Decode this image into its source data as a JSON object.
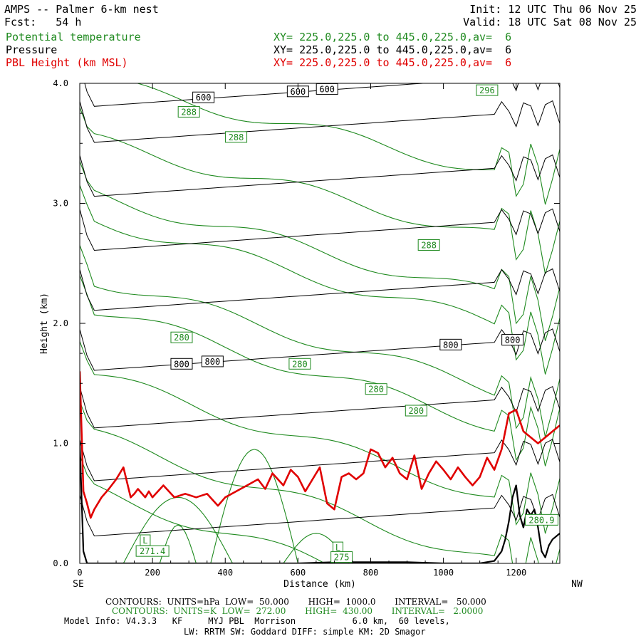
{
  "header": {
    "title": "AMPS -- Palmer 6-km nest",
    "fcst_label": "Fcst:",
    "fcst_value": "54 h",
    "init": "Init: 12 UTC Thu 06 Nov 25",
    "valid": "Valid: 18 UTC Sat 08 Nov 25",
    "fields": [
      {
        "name": "Potential temperature",
        "xy": "XY= 225.0,225.0 to 445.0,225.0,av=  6",
        "color": "#1f8a1f"
      },
      {
        "name": "Pressure",
        "xy": "XY= 225.0,225.0 to 445.0,225.0,av=  6",
        "color": "#000000"
      },
      {
        "name": "PBL Height (km MSL)",
        "xy": "XY= 225.0,225.0 to 445.0,225.0,av=  6",
        "color": "#e00000"
      }
    ]
  },
  "colors": {
    "theta": "#1f8a1f",
    "pressure": "#000000",
    "pbl": "#e00000",
    "terrain": "#000000"
  },
  "chart_data": {
    "type": "line",
    "xlabel": "Distance (km)",
    "ylabel": "Height (km)",
    "xlim": [
      0,
      1320
    ],
    "ylim": [
      0,
      4
    ],
    "xticks": [
      0,
      200,
      400,
      600,
      800,
      1000,
      1200
    ],
    "yticks": [
      0.0,
      1.0,
      2.0,
      3.0,
      4.0
    ],
    "x_end_labels": {
      "left": "SE",
      "right": "NW"
    },
    "pressure_contour_labels": [
      {
        "text": "600",
        "x": 340,
        "y": 3.88
      },
      {
        "text": "600",
        "x": 600,
        "y": 3.93
      },
      {
        "text": "600",
        "x": 680,
        "y": 3.95
      },
      {
        "text": "800",
        "x": 280,
        "y": 1.66
      },
      {
        "text": "800",
        "x": 365,
        "y": 1.68
      },
      {
        "text": "800",
        "x": 1020,
        "y": 1.82
      },
      {
        "text": "800",
        "x": 1190,
        "y": 1.86
      }
    ],
    "theta_contour_labels": [
      {
        "text": "288",
        "x": 300,
        "y": 3.76
      },
      {
        "text": "288",
        "x": 430,
        "y": 3.55
      },
      {
        "text": "288",
        "x": 960,
        "y": 2.65
      },
      {
        "text": "296",
        "x": 1120,
        "y": 3.94
      },
      {
        "text": "280",
        "x": 280,
        "y": 1.88
      },
      {
        "text": "280",
        "x": 605,
        "y": 1.66
      },
      {
        "text": "280",
        "x": 815,
        "y": 1.45
      },
      {
        "text": "280",
        "x": 925,
        "y": 1.27
      },
      {
        "text": "L",
        "x": 180,
        "y": 0.19
      },
      {
        "text": "271.4",
        "x": 200,
        "y": 0.1
      },
      {
        "text": "L",
        "x": 710,
        "y": 0.13
      },
      {
        "text": "275",
        "x": 720,
        "y": 0.05
      },
      {
        "text": "280.9",
        "x": 1270,
        "y": 0.36
      }
    ],
    "series": [
      {
        "name": "PBL Height (km MSL)",
        "x": [
          0,
          10,
          20,
          30,
          40,
          60,
          80,
          100,
          120,
          140,
          150,
          160,
          180,
          190,
          200,
          230,
          260,
          290,
          320,
          350,
          380,
          400,
          430,
          460,
          490,
          510,
          530,
          560,
          580,
          600,
          620,
          640,
          660,
          680,
          700,
          720,
          740,
          760,
          780,
          800,
          820,
          840,
          860,
          880,
          900,
          920,
          940,
          960,
          980,
          1000,
          1020,
          1040,
          1060,
          1080,
          1100,
          1120,
          1140,
          1160,
          1180,
          1200,
          1220,
          1240,
          1260,
          1280,
          1300,
          1320
        ],
        "y": [
          1.6,
          0.6,
          0.5,
          0.38,
          0.45,
          0.55,
          0.62,
          0.7,
          0.8,
          0.55,
          0.58,
          0.62,
          0.55,
          0.6,
          0.55,
          0.65,
          0.55,
          0.58,
          0.55,
          0.58,
          0.48,
          0.55,
          0.6,
          0.65,
          0.7,
          0.62,
          0.75,
          0.65,
          0.78,
          0.72,
          0.6,
          0.7,
          0.8,
          0.5,
          0.45,
          0.72,
          0.75,
          0.7,
          0.75,
          0.95,
          0.92,
          0.8,
          0.88,
          0.75,
          0.7,
          0.9,
          0.62,
          0.75,
          0.85,
          0.78,
          0.7,
          0.8,
          0.72,
          0.65,
          0.72,
          0.88,
          0.78,
          0.95,
          1.25,
          1.28,
          1.1,
          1.05,
          1.0,
          1.05,
          1.1,
          1.15
        ]
      },
      {
        "name": "Terrain",
        "x": [
          0,
          10,
          20,
          30,
          100,
          200,
          300,
          400,
          500,
          600,
          700,
          800,
          900,
          1000,
          1100,
          1140,
          1160,
          1170,
          1180,
          1190,
          1200,
          1210,
          1220,
          1230,
          1240,
          1250,
          1260,
          1270,
          1280,
          1290,
          1300,
          1320
        ],
        "y": [
          1.0,
          0.1,
          0.0,
          0.0,
          0.0,
          0.0,
          0.0,
          0.0,
          0.0,
          0.0,
          0.01,
          0.01,
          0.01,
          0.0,
          0.0,
          0.02,
          0.1,
          0.2,
          0.35,
          0.55,
          0.65,
          0.4,
          0.3,
          0.45,
          0.4,
          0.45,
          0.3,
          0.1,
          0.05,
          0.15,
          0.2,
          0.25
        ]
      }
    ]
  },
  "footer": {
    "contours_pressure": "CONTOURS:  UNITS=hPa  LOW=  50.000       HIGH=  1000.0       INTERVAL=   50.000",
    "contours_theta": "CONTOURS:  UNITS=K  LOW=  272.00       HIGH=  430.00       INTERVAL=   2.0000",
    "model_info_1": "Model Info: V4.3.3   KF     MYJ PBL  Morrison           6.0 km,  60 levels,",
    "model_info_2": "LW: RRTM SW: Goddard DIFF: simple KM: 2D Smagor"
  }
}
